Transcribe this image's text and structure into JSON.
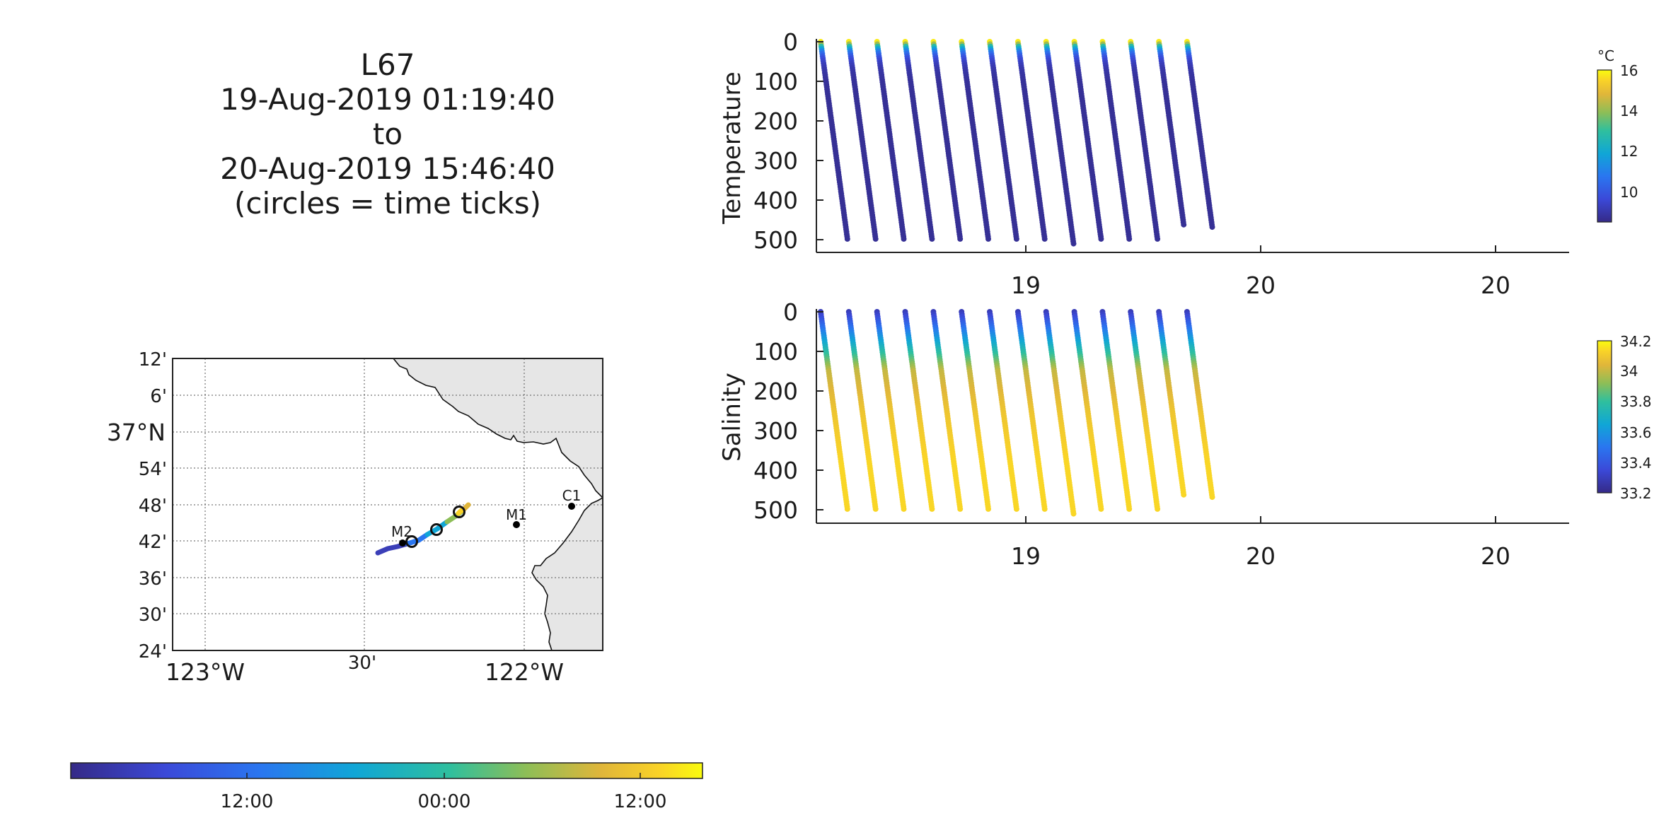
{
  "title_lines": [
    "L67",
    "19-Aug-2019 01:19:40",
    "to",
    "20-Aug-2019 15:46:40",
    "(circles = time ticks)"
  ],
  "map": {
    "lat_tick_labels": [
      "12'",
      "6'",
      "37°N",
      "54'",
      "48'",
      "42'",
      "36'",
      "30'",
      "24'"
    ],
    "lon_tick_labels": [
      "123°W",
      "30'",
      "122°W"
    ],
    "stations": [
      {
        "name": "M2",
        "lon": -122.38,
        "lat": 36.695
      },
      {
        "name": "M1",
        "lon": -122.03,
        "lat": 36.745
      },
      {
        "name": "C1",
        "lon": -121.85,
        "lat": 36.8
      }
    ],
    "land_color": "#e6e6e6"
  },
  "time_colorbar": {
    "tick_labels": [
      "12:00",
      "00:00",
      "12:00"
    ],
    "colormap": "parula"
  },
  "chart_data": [
    {
      "type": "scatter",
      "panel": "temperature",
      "ylabel": "Temperature",
      "y_ticks": [
        0,
        100,
        200,
        300,
        400,
        500
      ],
      "y_reversed": true,
      "x_tick_labels": [
        "19",
        "20",
        "20"
      ],
      "colorbar": {
        "unit": "°C",
        "ticks": [
          10,
          12,
          14,
          16
        ],
        "range": [
          8.5,
          16
        ]
      },
      "profiles": [
        {
          "start_day": 0.0,
          "max_depth": 500
        },
        {
          "start_day": 0.12,
          "max_depth": 500
        },
        {
          "start_day": 0.24,
          "max_depth": 500
        },
        {
          "start_day": 0.36,
          "max_depth": 500
        },
        {
          "start_day": 0.48,
          "max_depth": 500
        },
        {
          "start_day": 0.6,
          "max_depth": 500
        },
        {
          "start_day": 0.72,
          "max_depth": 500
        },
        {
          "start_day": 0.84,
          "max_depth": 500
        },
        {
          "start_day": 0.96,
          "max_depth": 510
        },
        {
          "start_day": 1.08,
          "max_depth": 500
        },
        {
          "start_day": 1.2,
          "max_depth": 500
        },
        {
          "start_day": 1.32,
          "max_depth": 500
        },
        {
          "start_day": 1.44,
          "max_depth": 465
        },
        {
          "start_day": 1.56,
          "max_depth": 470
        }
      ]
    },
    {
      "type": "scatter",
      "panel": "salinity",
      "ylabel": "Salinity",
      "y_ticks": [
        0,
        100,
        200,
        300,
        400,
        500
      ],
      "y_reversed": true,
      "x_tick_labels": [
        "19",
        "20",
        "20"
      ],
      "colorbar": {
        "unit": "",
        "ticks": [
          33.2,
          33.4,
          33.6,
          33.8,
          34,
          34.2
        ],
        "range": [
          33.15,
          34.25
        ]
      },
      "profiles": [
        {
          "start_day": 0.0,
          "max_depth": 500
        },
        {
          "start_day": 0.12,
          "max_depth": 500
        },
        {
          "start_day": 0.24,
          "max_depth": 500
        },
        {
          "start_day": 0.36,
          "max_depth": 500
        },
        {
          "start_day": 0.48,
          "max_depth": 500
        },
        {
          "start_day": 0.6,
          "max_depth": 500
        },
        {
          "start_day": 0.72,
          "max_depth": 500
        },
        {
          "start_day": 0.84,
          "max_depth": 500
        },
        {
          "start_day": 0.96,
          "max_depth": 510
        },
        {
          "start_day": 1.08,
          "max_depth": 500
        },
        {
          "start_day": 1.2,
          "max_depth": 500
        },
        {
          "start_day": 1.32,
          "max_depth": 500
        },
        {
          "start_day": 1.44,
          "max_depth": 465
        },
        {
          "start_day": 1.56,
          "max_depth": 470
        }
      ]
    }
  ]
}
